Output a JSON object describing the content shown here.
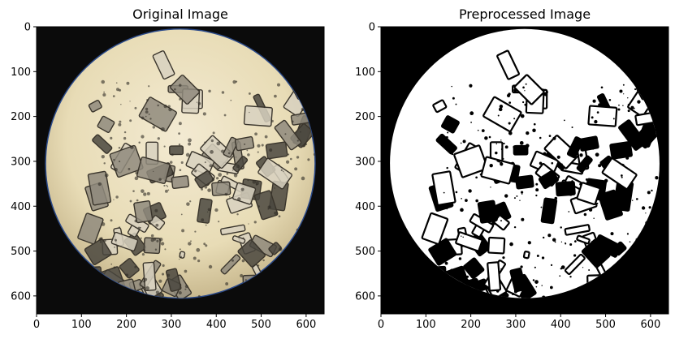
{
  "chart_data": [
    {
      "type": "image",
      "title": "Original Image",
      "xlim": [
        0,
        640
      ],
      "ylim": [
        640,
        0
      ],
      "xticks": [
        0,
        100,
        200,
        300,
        400,
        500,
        600
      ],
      "yticks": [
        0,
        100,
        200,
        300,
        400,
        500,
        600
      ],
      "content": "micrograph-crystals-color"
    },
    {
      "type": "image",
      "title": "Preprocessed Image",
      "xlim": [
        0,
        640
      ],
      "ylim": [
        640,
        0
      ],
      "xticks": [
        0,
        100,
        200,
        300,
        400,
        500,
        600
      ],
      "yticks": [
        0,
        100,
        200,
        300,
        400,
        500,
        600
      ],
      "content": "micrograph-crystals-binary"
    }
  ],
  "colors": {
    "original_background": "#efe6c8",
    "original_vignette": "#0b0b0b",
    "crystal_outline": "#3a352c",
    "binary_white": "#ffffff",
    "binary_black": "#000000"
  }
}
